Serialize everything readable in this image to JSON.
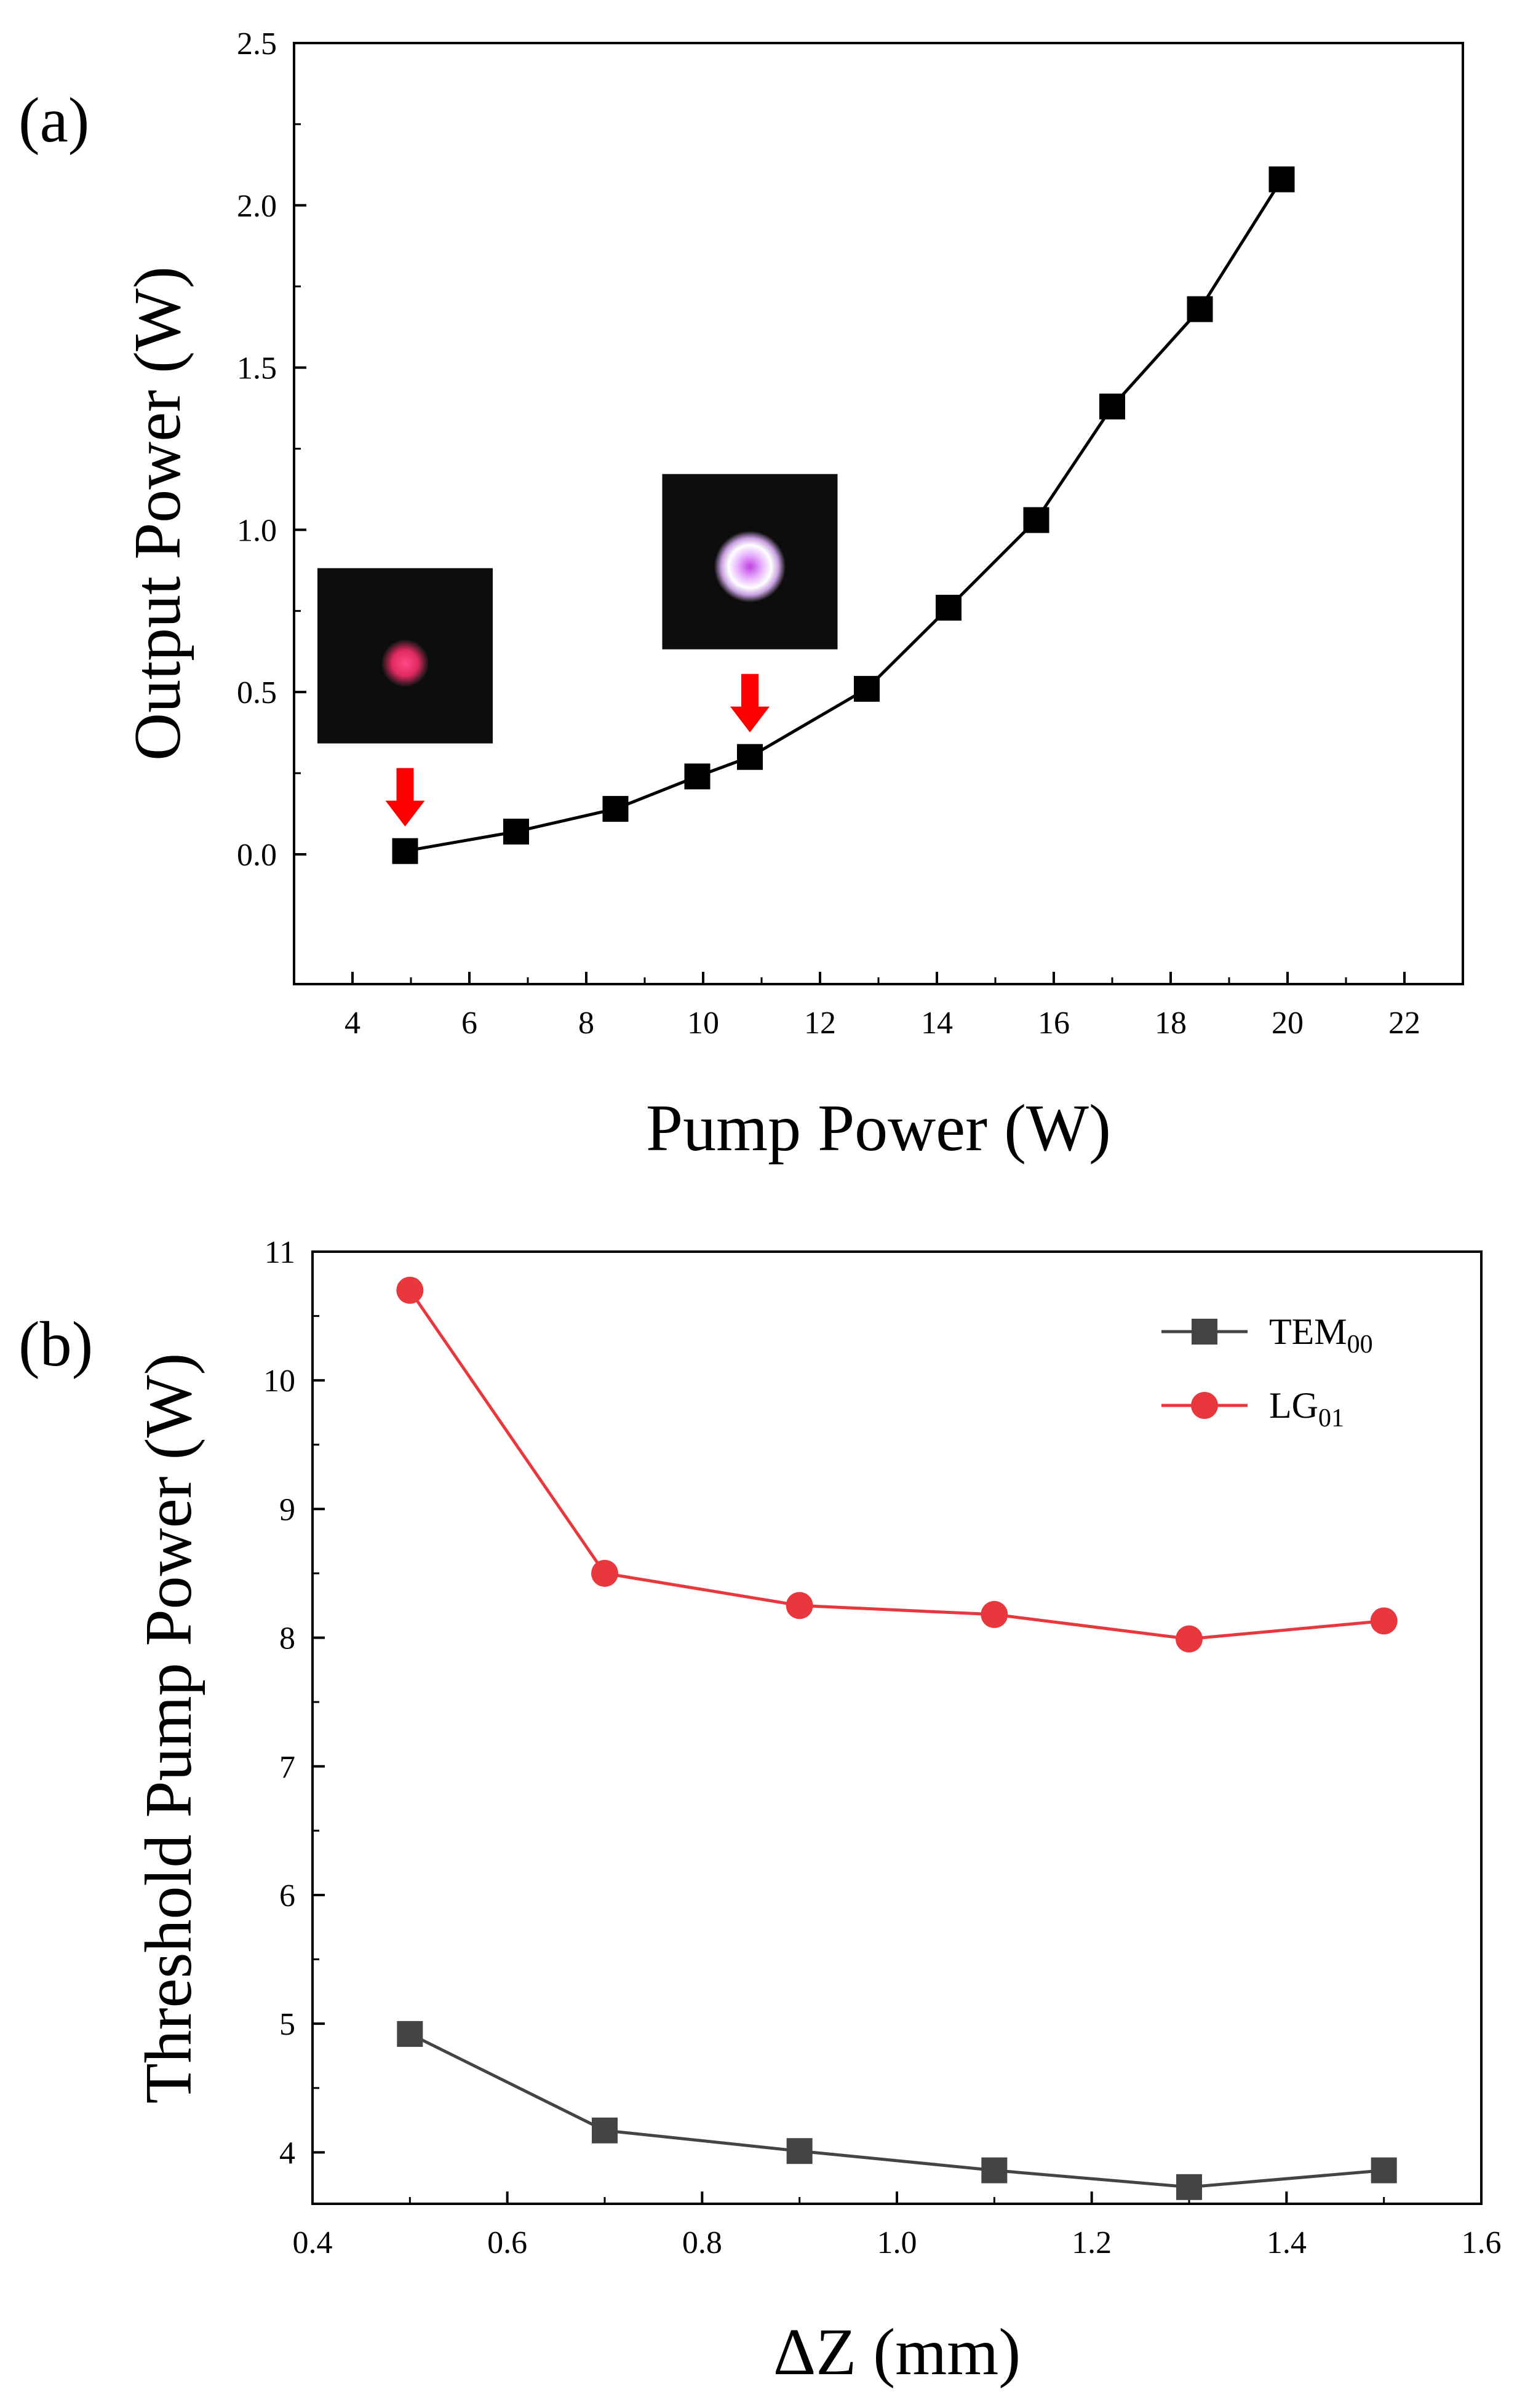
{
  "chart_data": [
    {
      "type": "line",
      "panel_label": "(a)",
      "xlabel": "Pump Power (W)",
      "ylabel": "Output Power (W)",
      "xlim": [
        3,
        23
      ],
      "ylim": [
        -0.4,
        2.5
      ],
      "xticks": [
        "4",
        "6",
        "8",
        "10",
        "12",
        "14",
        "16",
        "18",
        "20",
        "22"
      ],
      "yticks": [
        "0.0",
        "0.5",
        "1.0",
        "1.5",
        "2.0",
        "2.5"
      ],
      "grid": false,
      "series": [
        {
          "color": "#000000",
          "marker": "square",
          "x": [
            4.9,
            6.8,
            8.5,
            9.9,
            10.8,
            12.8,
            14.2,
            15.7,
            17.0,
            18.5,
            19.9
          ],
          "y": [
            0.01,
            0.07,
            0.14,
            0.24,
            0.3,
            0.51,
            0.76,
            1.03,
            1.38,
            1.68,
            2.08
          ]
        }
      ],
      "insets": [
        {
          "mode": "TEM00",
          "x": 4.9,
          "color": "#e5336b",
          "arrow_color": "#ff0000"
        },
        {
          "mode": "LG01",
          "x": 10.8,
          "color": "#f0c0ff",
          "arrow_color": "#ff0000"
        }
      ]
    },
    {
      "type": "line",
      "panel_label": "(b)",
      "xlabel": "ΔZ (mm)",
      "ylabel": "Threshold Pump Power (W)",
      "xlim": [
        0.4,
        1.6
      ],
      "ylim": [
        3.6,
        11.0
      ],
      "xticks": [
        "0.4",
        "0.6",
        "0.8",
        "1.0",
        "1.2",
        "1.4",
        "1.6"
      ],
      "yticks": [
        "4",
        "5",
        "6",
        "7",
        "8",
        "9",
        "10",
        "11"
      ],
      "grid": false,
      "legend_placement": "top-right",
      "x": [
        0.5,
        0.7,
        0.9,
        1.1,
        1.3,
        1.5
      ],
      "series": [
        {
          "name": "TEM",
          "name_sub": "00",
          "color": "#444444",
          "marker": "square",
          "values": [
            4.92,
            4.17,
            4.01,
            3.86,
            3.73,
            3.86
          ]
        },
        {
          "name": "LG",
          "name_sub": "01",
          "color": "#e8383d",
          "marker": "circle",
          "values": [
            10.7,
            8.5,
            8.25,
            8.18,
            7.99,
            8.13
          ]
        }
      ]
    }
  ]
}
